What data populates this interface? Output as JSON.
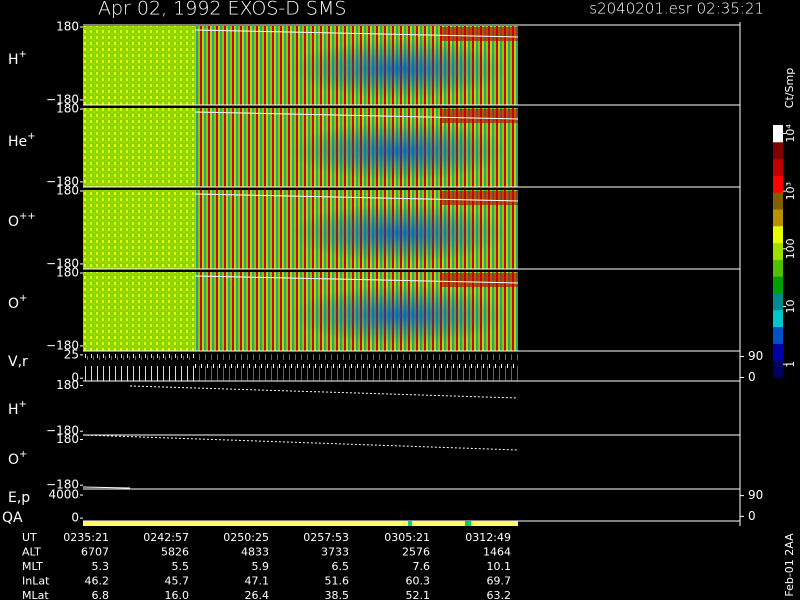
{
  "chart_data": {
    "type": "spectrogram",
    "title": "Apr 02, 1992   EXOS-D SMS",
    "subtitle": "s2040201.esr  02:35:21",
    "panels": [
      {
        "label": "H",
        "sup": "+",
        "ylim": [
          -205,
          190
        ],
        "yticks": [
          180,
          {
            "value": -180,
            "label": "−180"
          }
        ]
      },
      {
        "label": "He",
        "sup": "+",
        "ylim": [
          -205,
          190
        ],
        "yticks": [
          180,
          {
            "value": -180,
            "label": "−180"
          }
        ]
      },
      {
        "label": "O",
        "sup": "++",
        "ylim": [
          -205,
          190
        ],
        "yticks": [
          180,
          {
            "value": -180,
            "label": "−180"
          }
        ]
      },
      {
        "label": "O",
        "sup": "+",
        "ylim": [
          -205,
          190
        ],
        "yticks": [
          180,
          {
            "value": -180,
            "label": "−180"
          }
        ]
      },
      {
        "label": "V,r",
        "ylim": [
          -3,
          27
        ],
        "yticks": [
          25,
          0
        ],
        "y2lim": [
          -15,
          105
        ],
        "y2ticks": [
          90,
          0
        ]
      },
      {
        "label": "H",
        "sup": "+",
        "ylim": [
          -210,
          200
        ],
        "yticks": [
          180,
          {
            "value": -180,
            "label": "−180"
          }
        ]
      },
      {
        "label": "O",
        "sup": "+",
        "ylim": [
          -210,
          200
        ],
        "yticks": [
          180,
          {
            "value": -180,
            "label": "−180"
          }
        ]
      },
      {
        "label": "E,p",
        "ylim": [
          -500,
          4700
        ],
        "yticks": [
          4000,
          0
        ],
        "y2lim": [
          -20,
          110
        ],
        "y2ticks": [
          90,
          0
        ]
      }
    ],
    "qa_label": "QA",
    "colorbar": {
      "label": "Ct/Smp",
      "log": true,
      "clim": [
        0.6,
        14000
      ],
      "colors": [
        "#000060",
        "#0000a8",
        "#0050c8",
        "#00c8c8",
        "#008c8c",
        "#00a000",
        "#50c000",
        "#a0e000",
        "#e8ff00",
        "#b89000",
        "#806000",
        "#ff0000",
        "#c00000",
        "#800000",
        "#ffffff"
      ],
      "ticks": [
        {
          "value": 10000,
          "label": "10⁴"
        },
        {
          "value": 1000,
          "label": "10³"
        },
        100,
        10,
        1
      ]
    },
    "ephemeris": [
      {
        "label": "UT",
        "values": [
          "0235:21",
          "0242:57",
          "0250:25",
          "0257:53",
          "0305:21",
          "0312:49"
        ]
      },
      {
        "label": "ALT",
        "values": [
          "6707",
          "5826",
          "4833",
          "3733",
          "2576",
          "1464"
        ]
      },
      {
        "label": "MLT",
        "values": [
          "5.3",
          "5.5",
          "5.9",
          "6.5",
          "7.6",
          "10.1"
        ]
      },
      {
        "label": "InLat",
        "values": [
          "46.2",
          "45.7",
          "47.1",
          "51.6",
          "60.3",
          "69.7"
        ]
      },
      {
        "label": "MLat",
        "values": [
          "6.8",
          "16.0",
          "26.4",
          "38.5",
          "52.1",
          "63.2"
        ]
      }
    ],
    "footer": "Feb-01 2AA"
  }
}
